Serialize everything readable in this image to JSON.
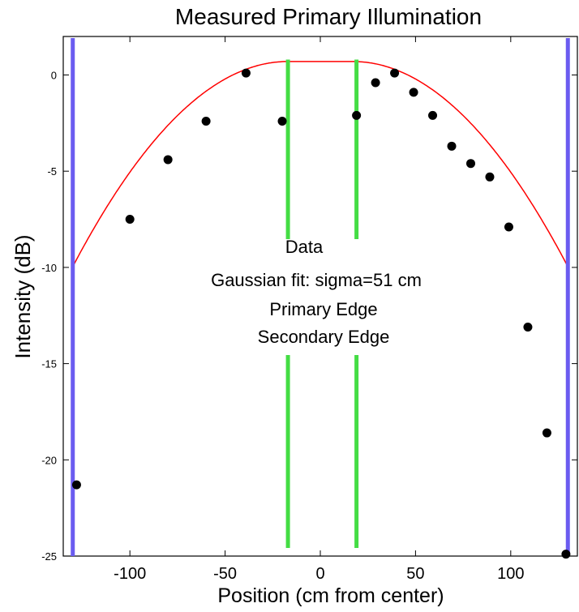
{
  "chart_data": {
    "type": "scatter",
    "title": "Measured Primary Illumination",
    "xlabel": "Position (cm from center)",
    "ylabel": "Intensity (dB)",
    "xlim": [
      -135,
      135
    ],
    "ylim": [
      -25,
      2
    ],
    "xticks": [
      -100,
      -50,
      0,
      50,
      100
    ],
    "yticks": [
      0,
      -5,
      -10,
      -15,
      -20,
      -25
    ],
    "grid": false,
    "legend": {
      "placement": "center",
      "entries": [
        {
          "label": "Data",
          "color": "#000000"
        },
        {
          "label": "Gaussian fit: sigma=51 cm",
          "color": "#ff0000"
        },
        {
          "label": "Primary Edge",
          "color": "#6b5cf0"
        },
        {
          "label": "Secondary Edge",
          "color": "#44dd44"
        }
      ]
    },
    "series": [
      {
        "name": "Data",
        "color": "#000000",
        "x": [
          -128,
          -100,
          -80,
          -60,
          -39,
          -20,
          19,
          29,
          39,
          49,
          59,
          69,
          79,
          89,
          99,
          109,
          119,
          129
        ],
        "y": [
          -21.3,
          -7.5,
          -4.4,
          -2.4,
          0.1,
          -2.4,
          -2.1,
          -0.4,
          0.1,
          -0.9,
          -2.1,
          -3.7,
          -4.6,
          -5.3,
          -7.9,
          -13.1,
          -18.6,
          -24.9
        ]
      },
      {
        "name": "Gaussian fit: sigma=51 cm",
        "color": "#ff0000",
        "peak": 0.7,
        "flat_halfwidth": 17,
        "sigma": 51,
        "xrange": [
          -130,
          130
        ]
      }
    ],
    "vlines": [
      {
        "name": "Primary Edge",
        "color": "#6b5cf0",
        "x": [
          -130,
          130
        ]
      },
      {
        "name": "Secondary Edge",
        "color": "#44dd44",
        "x": [
          -17,
          19
        ]
      }
    ]
  }
}
